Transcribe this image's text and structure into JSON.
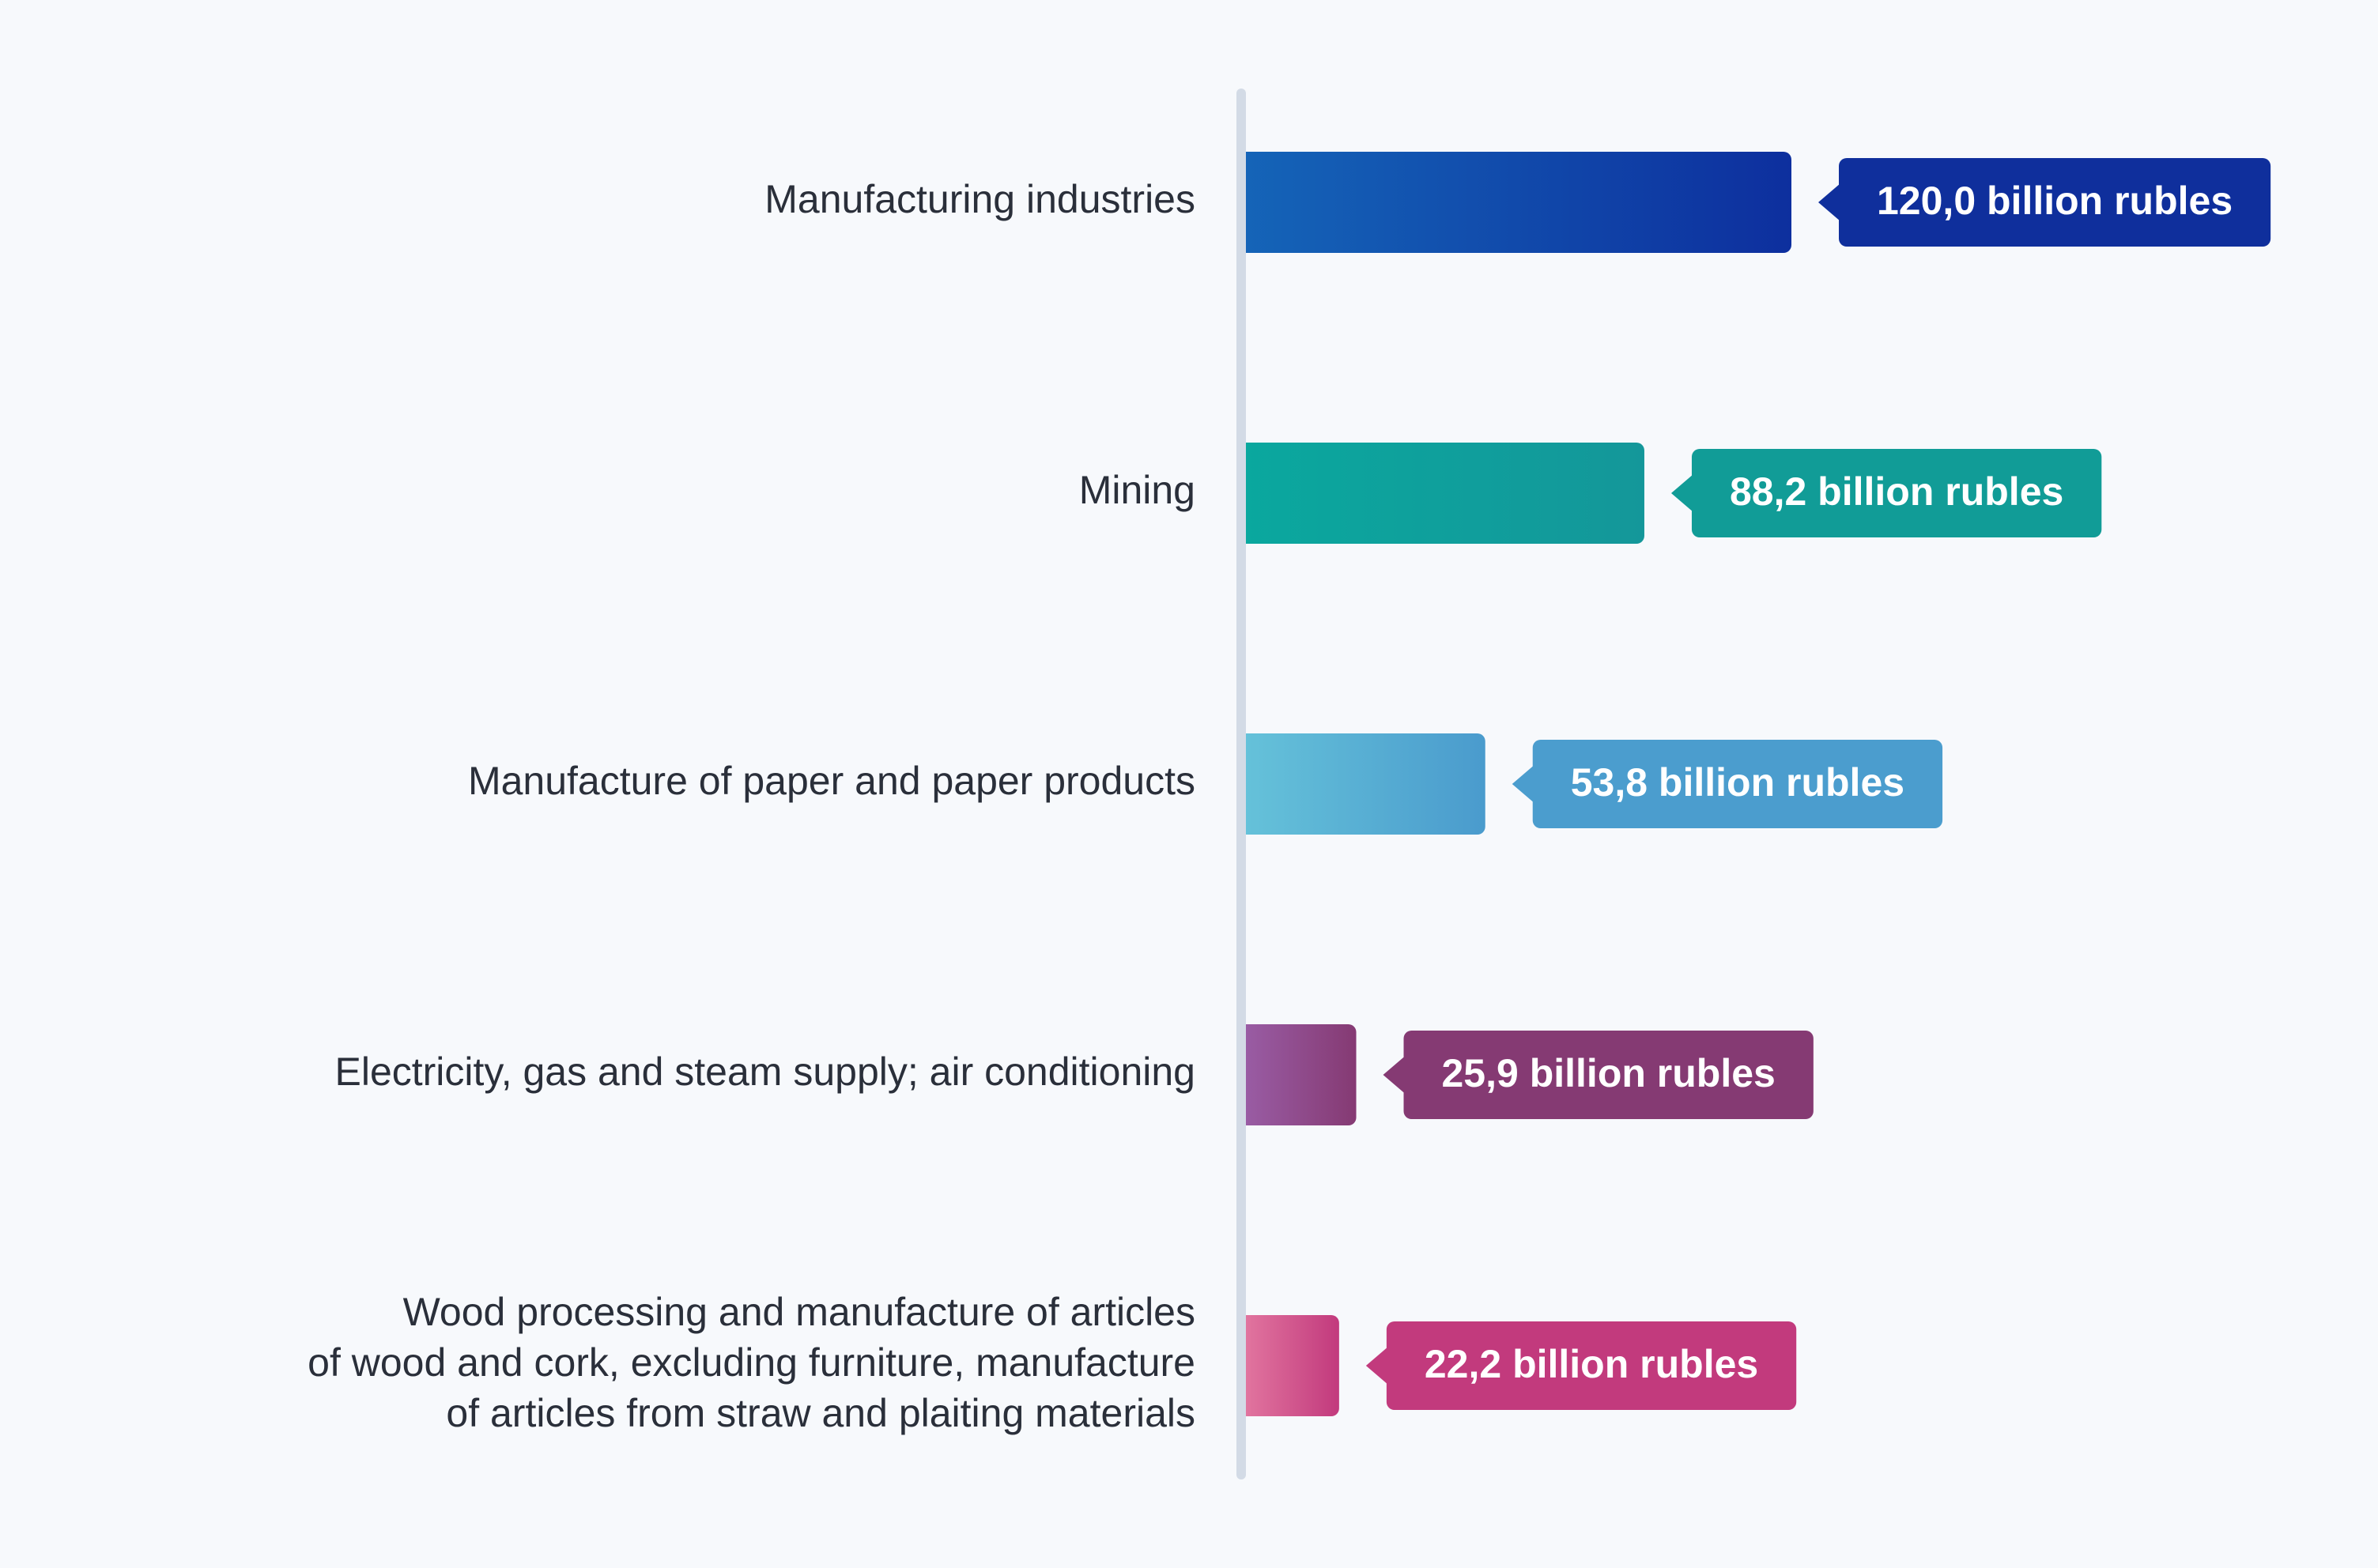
{
  "chart_data": {
    "type": "bar",
    "orientation": "horizontal",
    "categories": [
      [
        "Manufacturing industries"
      ],
      [
        "Mining"
      ],
      [
        "Manufacture of paper and paper products"
      ],
      [
        "Electricity, gas and steam supply; air conditioning"
      ],
      [
        "Wood processing and manufacture of articles",
        "of wood and cork, excluding furniture, manufacture",
        "of articles from straw and plaiting materials"
      ]
    ],
    "values": [
      120.0,
      88.2,
      53.8,
      25.9,
      22.2
    ],
    "value_labels": [
      "120,0 billion rubles",
      "88,2 billion rubles",
      "53,8 billion rubles",
      "25,9 billion rubles",
      "22,2 billion rubles"
    ],
    "colors": [
      {
        "start": "#1565b8",
        "end": "#0d2f9e"
      },
      {
        "start": "#0aa89e",
        "end": "#14979a"
      },
      {
        "start": "#66c3da",
        "end": "#4a9bcd"
      },
      {
        "start": "#9b5fa8",
        "end": "#853a73"
      },
      {
        "start": "#e47aa2",
        "end": "#c23a7d"
      }
    ],
    "label_colors": [
      "#0f2f9c",
      "#119c97",
      "#4b9dce",
      "#853a73",
      "#c23a7d"
    ],
    "axis_color": "#d3dbe6",
    "grid": false,
    "legend": false
  }
}
